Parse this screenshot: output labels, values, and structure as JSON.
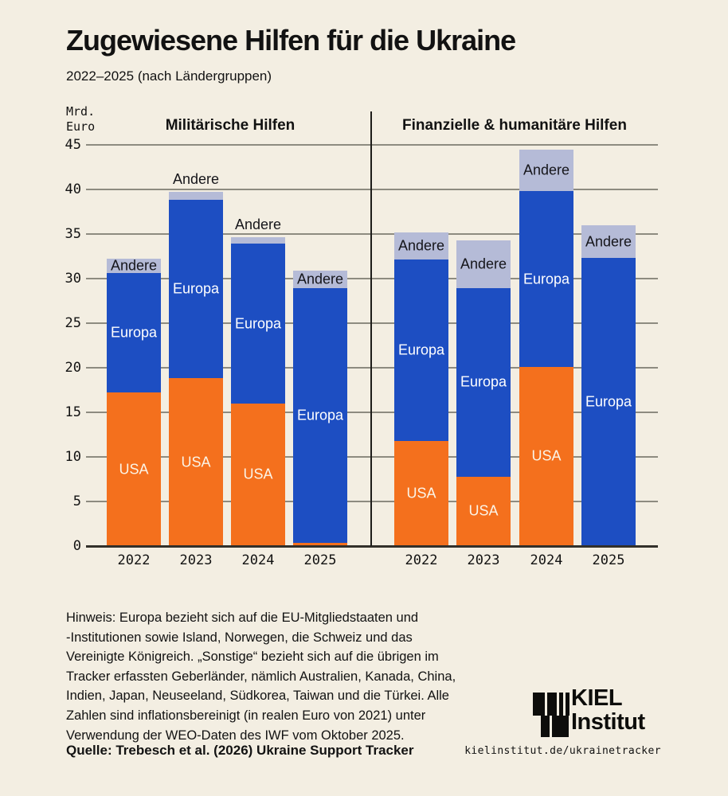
{
  "header": {
    "title": "Zugewiesene Hilfen für die Ukraine",
    "subtitle": "2022–2025 (nach Ländergruppen)"
  },
  "chart_data": {
    "type": "bar",
    "stacked": true,
    "title": "Zugewiesene Hilfen für die Ukraine",
    "subtitle": "2022–2025 (nach Ländergruppen)",
    "ylabel_lines": [
      "Mrd.",
      "Euro"
    ],
    "ylim": [
      0,
      45
    ],
    "ytick_step": 5,
    "grid": true,
    "categories": [
      "2022",
      "2023",
      "2024",
      "2025"
    ],
    "legend": [
      "USA",
      "Europa",
      "Andere"
    ],
    "colors": {
      "USA": "#f4701d",
      "Europa": "#1d4ec2",
      "Andere": "#b5bbd7",
      "background": "#f3eee2",
      "gridline": "#8d8b80",
      "axis": "#32302a",
      "text": "#121212"
    },
    "panels": [
      {
        "title": "Militärische Hilfen",
        "series": [
          {
            "name": "USA",
            "values": [
              17.2,
              18.8,
              16.0,
              0.4
            ]
          },
          {
            "name": "Europa",
            "values": [
              13.4,
              20.0,
              17.9,
              28.5
            ]
          },
          {
            "name": "Andere",
            "values": [
              1.6,
              0.9,
              0.7,
              2.0
            ]
          }
        ]
      },
      {
        "title": "Finanzielle & humanitäre Hilfen",
        "series": [
          {
            "name": "USA",
            "values": [
              11.8,
              7.8,
              20.1,
              0
            ]
          },
          {
            "name": "Europa",
            "values": [
              20.3,
              21.1,
              19.7,
              32.3
            ]
          },
          {
            "name": "Andere",
            "values": [
              3.1,
              5.4,
              4.7,
              3.7
            ]
          }
        ]
      }
    ]
  },
  "footnote": {
    "lines": [
      "Hinweis: Europa bezieht sich auf die EU-Mitgliedstaaten und",
      "-Institutionen sowie Island, Norwegen, die Schweiz und das",
      "Vereinigte Königreich. „Sonstige“ bezieht sich auf die übrigen im",
      "Tracker erfassten Geberländer, nämlich Australien, Kanada, China,",
      "Indien, Japan, Neuseeland, Südkorea, Taiwan und die Türkei. Alle",
      "Zahlen sind inflationsbereinigt (in realen Euro von 2021) unter",
      "Verwendung der WEO-Daten des IWF vom Oktober 2025."
    ]
  },
  "source": "Quelle: Trebesch et al. (2026) Ukraine Support Tracker",
  "logo": {
    "line1": "KIEL",
    "line2": "Institut"
  },
  "website": "kielinstitut.de/ukrainetracker"
}
